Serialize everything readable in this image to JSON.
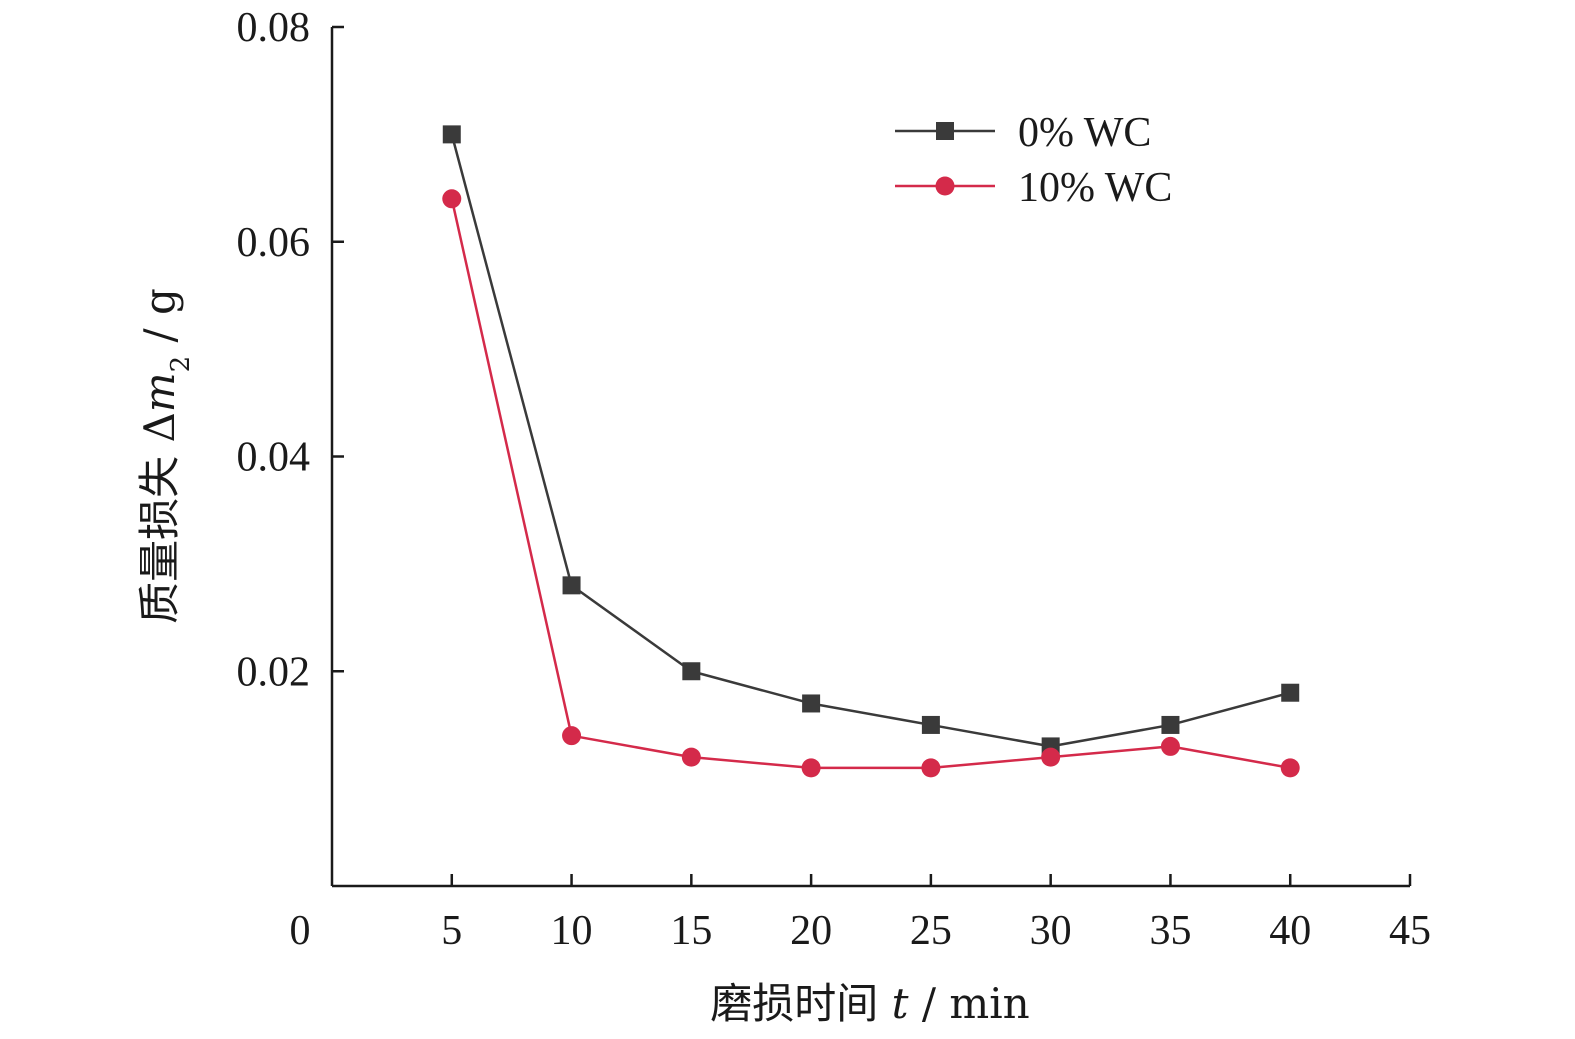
{
  "chart_data": {
    "type": "line",
    "xlabel": {
      "prefix": "磨损时间 ",
      "var": "t",
      "suffix": " / min"
    },
    "ylabel": {
      "prefix": "质量损失 Δ",
      "var": "m",
      "sub": "2",
      "suffix": " / g"
    },
    "xlim": [
      0,
      45
    ],
    "ylim": [
      0,
      0.08
    ],
    "x_ticks": [
      0,
      5,
      10,
      15,
      20,
      25,
      30,
      35,
      40,
      45
    ],
    "x_tick_labels": [
      "0",
      "5",
      "10",
      "15",
      "20",
      "25",
      "30",
      "35",
      "40",
      "45"
    ],
    "y_ticks": [
      0.02,
      0.04,
      0.06,
      0.08
    ],
    "y_tick_labels": [
      "0.02",
      "0.04",
      "0.06",
      "0.08"
    ],
    "x": [
      5,
      10,
      15,
      20,
      25,
      30,
      35,
      40
    ],
    "series": [
      {
        "name": "0% WC",
        "marker": "square",
        "color": "#3a3a3a",
        "values": [
          0.07,
          0.028,
          0.02,
          0.017,
          0.015,
          0.013,
          0.015,
          0.018
        ]
      },
      {
        "name": "10% WC",
        "marker": "circle",
        "color": "#d42a4a",
        "values": [
          0.064,
          0.014,
          0.012,
          0.011,
          0.011,
          0.012,
          0.013,
          0.011
        ]
      }
    ],
    "grid": false,
    "legend_position": "top-right"
  }
}
